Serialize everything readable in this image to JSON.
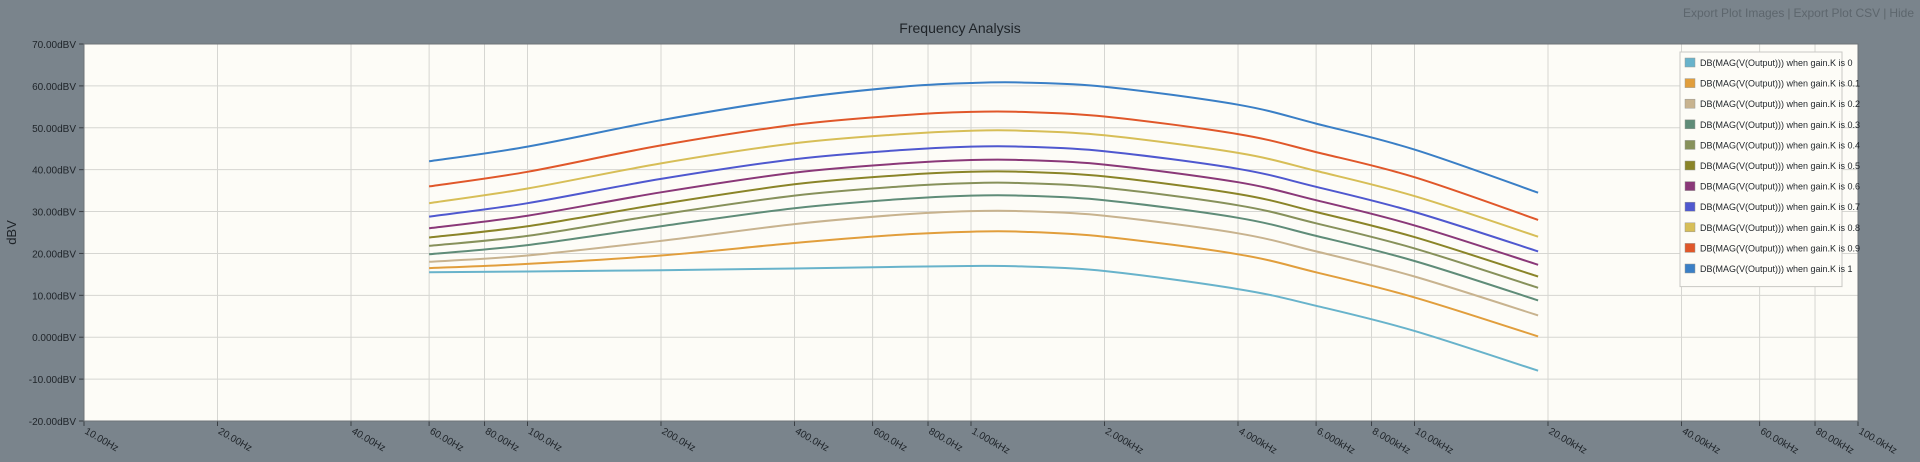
{
  "toolbar": {
    "export_images": "Export Plot Images",
    "export_csv": "Export Plot CSV",
    "hide": "Hide",
    "separator": "|"
  },
  "chart_data": {
    "type": "line",
    "title": "Frequency Analysis",
    "xlabel": "",
    "ylabel": "dBV",
    "xscale": "log",
    "xlim": [
      10,
      100000
    ],
    "ylim": [
      -20,
      70
    ],
    "grid": true,
    "legend_position": "top-right",
    "y_ticks": [
      {
        "value": 70,
        "label": "70.00dBV"
      },
      {
        "value": 60,
        "label": "60.00dBV"
      },
      {
        "value": 50,
        "label": "50.00dBV"
      },
      {
        "value": 40,
        "label": "40.00dBV"
      },
      {
        "value": 30,
        "label": "30.00dBV"
      },
      {
        "value": 20,
        "label": "20.00dBV"
      },
      {
        "value": 10,
        "label": "10.00dBV"
      },
      {
        "value": 0,
        "label": "0.000dBV"
      },
      {
        "value": -10,
        "label": "-10.00dBV"
      },
      {
        "value": -20,
        "label": "-20.00dBV"
      }
    ],
    "x_ticks": [
      {
        "value": 10,
        "label": "10.00Hz"
      },
      {
        "value": 20,
        "label": "20.00Hz"
      },
      {
        "value": 40,
        "label": "40.00Hz"
      },
      {
        "value": 60,
        "label": "60.00Hz"
      },
      {
        "value": 80,
        "label": "80.00Hz"
      },
      {
        "value": 100,
        "label": "100.0Hz"
      },
      {
        "value": 200,
        "label": "200.0Hz"
      },
      {
        "value": 400,
        "label": "400.0Hz"
      },
      {
        "value": 600,
        "label": "600.0Hz"
      },
      {
        "value": 800,
        "label": "800.0Hz"
      },
      {
        "value": 1000,
        "label": "1.000kHz"
      },
      {
        "value": 2000,
        "label": "2.000kHz"
      },
      {
        "value": 4000,
        "label": "4.000kHz"
      },
      {
        "value": 6000,
        "label": "6.000kHz"
      },
      {
        "value": 8000,
        "label": "8.000kHz"
      },
      {
        "value": 10000,
        "label": "10.00kHz"
      },
      {
        "value": 20000,
        "label": "20.00kHz"
      },
      {
        "value": 40000,
        "label": "40.00kHz"
      },
      {
        "value": 60000,
        "label": "60.00kHz"
      },
      {
        "value": 80000,
        "label": "80.00kHz"
      },
      {
        "value": 100000,
        "label": "100.0kHz"
      }
    ],
    "x": [
      60,
      100,
      200,
      400,
      700,
      1000,
      1300,
      2000,
      4000,
      6000,
      10000,
      19000
    ],
    "series": [
      {
        "name": "DB(MAG(V(Output))) when gain.K is 0",
        "color": "#68b3cb",
        "values": [
          15.5,
          15.7,
          16.0,
          16.4,
          16.8,
          17.0,
          16.9,
          15.8,
          11.5,
          7.5,
          1.5,
          -8.0
        ]
      },
      {
        "name": "DB(MAG(V(Output))) when gain.K is 0.1",
        "color": "#e19e3c",
        "values": [
          16.5,
          17.5,
          19.5,
          22.5,
          24.5,
          25.2,
          25.2,
          24.0,
          19.8,
          15.5,
          9.5,
          0.2
        ]
      },
      {
        "name": "DB(MAG(V(Output))) when gain.K is 0.2",
        "color": "#c8b38f",
        "values": [
          18.0,
          19.5,
          23.0,
          27.0,
          29.3,
          30.1,
          30.1,
          29.0,
          24.8,
          20.5,
          14.5,
          5.2
        ]
      },
      {
        "name": "DB(MAG(V(Output))) when gain.K is 0.3",
        "color": "#5f8c78",
        "values": [
          19.8,
          22.0,
          26.5,
          30.8,
          33.0,
          33.8,
          33.8,
          32.7,
          28.5,
          24.2,
          18.2,
          8.8
        ]
      },
      {
        "name": "DB(MAG(V(Output))) when gain.K is 0.4",
        "color": "#87915b",
        "values": [
          21.8,
          24.2,
          29.3,
          33.8,
          36.0,
          36.8,
          36.8,
          35.7,
          31.5,
          27.2,
          21.2,
          11.8
        ]
      },
      {
        "name": "DB(MAG(V(Output))) when gain.K is 0.5",
        "color": "#8a8428",
        "values": [
          23.8,
          26.5,
          31.8,
          36.5,
          38.7,
          39.5,
          39.5,
          38.4,
          34.2,
          29.9,
          23.9,
          14.5
        ]
      },
      {
        "name": "DB(MAG(V(Output))) when gain.K is 0.6",
        "color": "#8a3878",
        "values": [
          26.0,
          29.0,
          34.6,
          39.3,
          41.5,
          42.3,
          42.3,
          41.2,
          37.0,
          32.7,
          26.7,
          17.3
        ]
      },
      {
        "name": "DB(MAG(V(Output))) when gain.K is 0.7",
        "color": "#4f58cf",
        "values": [
          28.8,
          32.0,
          37.8,
          42.5,
          44.7,
          45.5,
          45.5,
          44.4,
          40.2,
          35.9,
          29.9,
          20.5
        ]
      },
      {
        "name": "DB(MAG(V(Output))) when gain.K is 0.8",
        "color": "#d7be57",
        "values": [
          32.0,
          35.5,
          41.5,
          46.3,
          48.5,
          49.3,
          49.3,
          48.2,
          44.0,
          39.7,
          33.7,
          24.0
        ]
      },
      {
        "name": "DB(MAG(V(Output))) when gain.K is 0.9",
        "color": "#e0572a",
        "values": [
          36.0,
          39.5,
          45.8,
          50.7,
          53.0,
          53.8,
          53.8,
          52.7,
          48.5,
          44.2,
          38.2,
          28.0
        ]
      },
      {
        "name": "DB(MAG(V(Output))) when gain.K is 1",
        "color": "#3a7fc6",
        "values": [
          42.0,
          45.5,
          51.8,
          57.0,
          59.8,
          60.7,
          60.8,
          59.8,
          55.5,
          51.0,
          44.8,
          34.5
        ]
      }
    ]
  }
}
